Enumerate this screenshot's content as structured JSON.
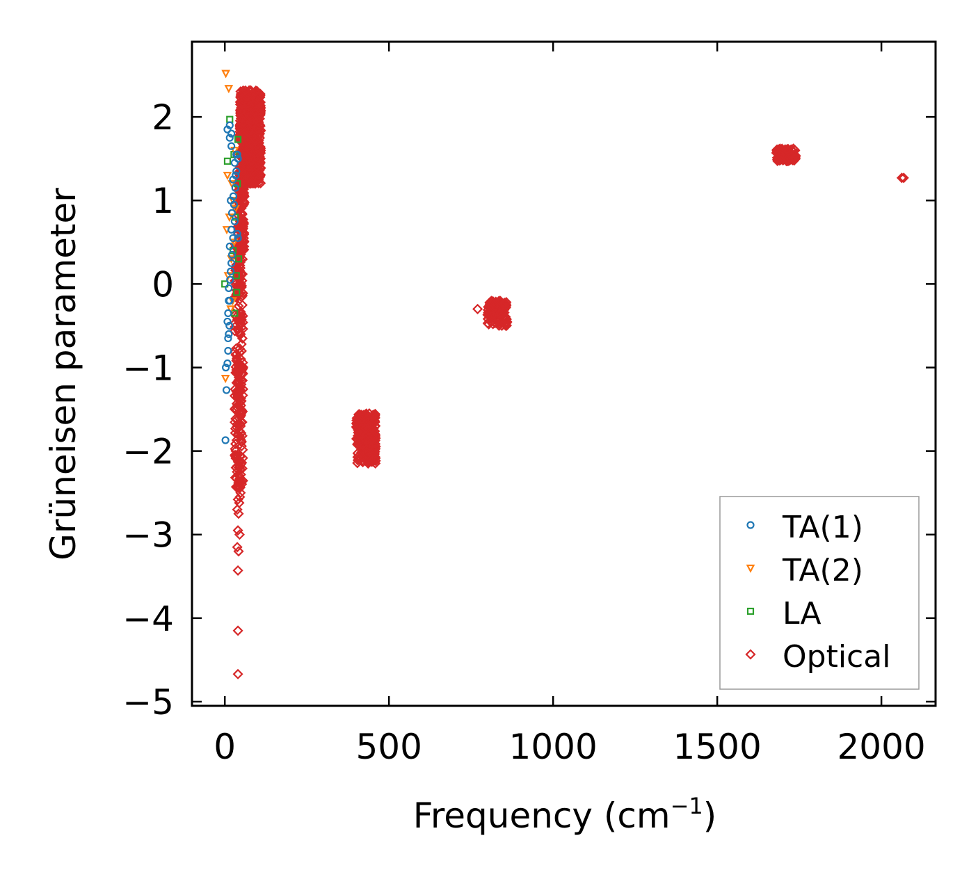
{
  "chart_data": {
    "type": "scatter",
    "title": "",
    "xlabel": "Frequency (cm",
    "xlabel_sup": "−1",
    "xlabel_close": ")",
    "ylabel": "Grüneisen parameter",
    "xlim": [
      -100,
      2165
    ],
    "ylim": [
      -5.05,
      2.9
    ],
    "xticks": [
      0,
      500,
      1000,
      1500,
      2000
    ],
    "xtick_labels": [
      "0",
      "500",
      "1000",
      "1500",
      "2000"
    ],
    "yticks": [
      2,
      1,
      0,
      -1,
      -2,
      -3,
      -4,
      -5
    ],
    "ytick_labels": [
      "2",
      "1",
      "0",
      "−1",
      "−2",
      "−3",
      "−4",
      "−5"
    ],
    "grid": false,
    "legend_position": "bottom-right",
    "series": [
      {
        "name": "TA(1)",
        "marker": "circle",
        "color": "#1f77b4",
        "points": [
          [
            2,
            -1.87
          ],
          [
            5,
            -1.27
          ],
          [
            3,
            -1.0
          ],
          [
            8,
            -0.95
          ],
          [
            10,
            -0.8
          ],
          [
            12,
            -0.6
          ],
          [
            14,
            -0.5
          ],
          [
            10,
            -0.35
          ],
          [
            15,
            -0.2
          ],
          [
            12,
            -0.05
          ],
          [
            16,
            0.05
          ],
          [
            18,
            0.15
          ],
          [
            20,
            0.25
          ],
          [
            22,
            0.35
          ],
          [
            15,
            0.45
          ],
          [
            25,
            0.55
          ],
          [
            20,
            0.65
          ],
          [
            30,
            0.75
          ],
          [
            22,
            0.85
          ],
          [
            28,
            0.95
          ],
          [
            26,
            1.05
          ],
          [
            32,
            1.15
          ],
          [
            25,
            1.25
          ],
          [
            35,
            1.35
          ],
          [
            30,
            1.45
          ],
          [
            35,
            1.55
          ],
          [
            20,
            1.65
          ],
          [
            38,
            1.55
          ],
          [
            8,
            1.85
          ],
          [
            15,
            1.75
          ],
          [
            40,
            1.5
          ],
          [
            33,
            1.3
          ],
          [
            18,
            1.0
          ],
          [
            40,
            0.55
          ],
          [
            38,
            0.6
          ],
          [
            12,
            -0.2
          ],
          [
            8,
            -0.45
          ],
          [
            10,
            -0.65
          ],
          [
            15,
            1.9
          ],
          [
            20,
            1.8
          ]
        ]
      },
      {
        "name": "TA(2)",
        "marker": "triangle-down",
        "color": "#ff7f0e",
        "points": [
          [
            3,
            2.52
          ],
          [
            12,
            2.34
          ],
          [
            8,
            1.3
          ],
          [
            2,
            -1.13
          ],
          [
            6,
            0.65
          ],
          [
            14,
            0.8
          ],
          [
            20,
            0.3
          ],
          [
            18,
            -0.3
          ],
          [
            25,
            1.0
          ],
          [
            28,
            0.5
          ],
          [
            22,
            1.2
          ],
          [
            30,
            1.6
          ],
          [
            10,
            0.1
          ],
          [
            24,
            -0.2
          ],
          [
            32,
            0.9
          ]
        ]
      },
      {
        "name": "LA",
        "marker": "square",
        "color": "#2ca02c",
        "points": [
          [
            0,
            0.0
          ],
          [
            15,
            1.97
          ],
          [
            8,
            1.47
          ],
          [
            40,
            1.73
          ],
          [
            30,
            -0.35
          ],
          [
            35,
            0.1
          ],
          [
            25,
            0.4
          ],
          [
            32,
            0.8
          ],
          [
            38,
            1.2
          ],
          [
            28,
            1.55
          ],
          [
            36,
            -0.1
          ],
          [
            42,
            0.3
          ]
        ]
      },
      {
        "name": "Optical",
        "marker": "diamond",
        "color": "#d62728",
        "points": [
          [
            40,
            -4.67
          ],
          [
            40,
            -4.15
          ],
          [
            40,
            -3.43
          ],
          [
            42,
            -3.2
          ],
          [
            38,
            -3.15
          ],
          [
            45,
            -3.0
          ],
          [
            40,
            -2.95
          ],
          [
            42,
            -2.75
          ],
          [
            38,
            -2.7
          ],
          [
            44,
            -2.62
          ],
          [
            40,
            -2.58
          ],
          [
            46,
            -2.55
          ],
          [
            48,
            -2.5
          ],
          [
            44,
            -2.45
          ],
          [
            770,
            -0.3
          ],
          [
            2062,
            1.27
          ],
          [
            2068,
            1.27
          ]
        ],
        "clusters": [
          {
            "x_range": [
              30,
              56
            ],
            "y_range": [
              -2.45,
              0.5
            ],
            "count": 260
          },
          {
            "x_range": [
              40,
              60
            ],
            "y_range": [
              0.4,
              1.3
            ],
            "count": 120
          },
          {
            "x_range": [
              45,
              110
            ],
            "y_range": [
              1.2,
              2.32
            ],
            "count": 700
          },
          {
            "x_range": [
              400,
              460
            ],
            "y_range": [
              -2.15,
              -1.55
            ],
            "count": 260
          },
          {
            "x_range": [
              800,
              860
            ],
            "y_range": [
              -0.5,
              -0.2
            ],
            "count": 110
          },
          {
            "x_range": [
              1680,
              1740
            ],
            "y_range": [
              1.47,
              1.62
            ],
            "count": 100
          }
        ]
      }
    ]
  }
}
